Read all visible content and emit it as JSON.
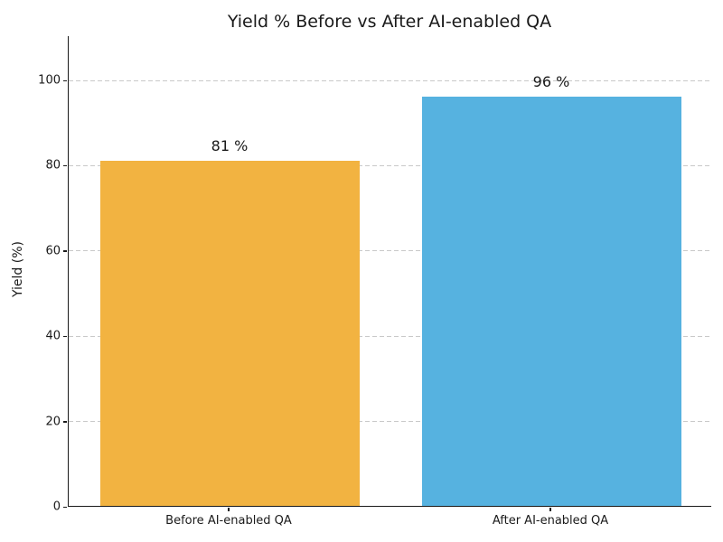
{
  "chart_data": {
    "type": "bar",
    "title": "Yield % Before vs After AI-enabled QA",
    "categories": [
      "Before AI-enabled QA",
      "After AI-enabled QA"
    ],
    "values": [
      81,
      96
    ],
    "value_labels": [
      "81 %",
      "96 %"
    ],
    "bar_colors": [
      "#F2B341",
      "#56B2E0"
    ],
    "xlabel": "",
    "ylabel": "Yield (%)",
    "ylim": [
      0,
      110
    ],
    "yticks": [
      0,
      20,
      40,
      60,
      80,
      100
    ],
    "grid": "horizontal-dashed",
    "gridline_color": "#c9c9c9",
    "legend": "none",
    "background_color": "#ffffff"
  }
}
